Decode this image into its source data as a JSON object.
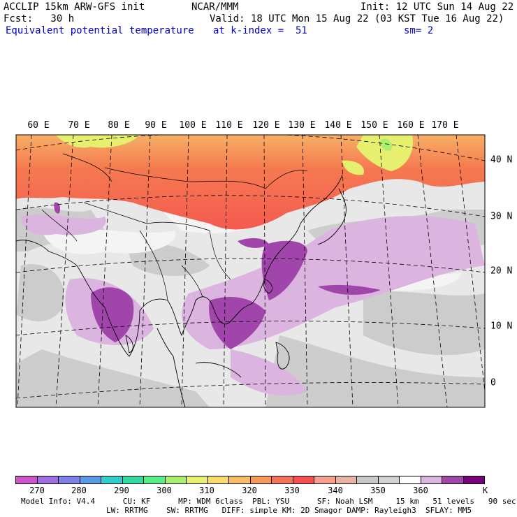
{
  "header": {
    "title_line": "ACCLIP 15km ARW-GFS init",
    "center": "NCAR/MMM",
    "init": "Init: 12 UTC Sun 14 Aug 22",
    "fcst": "Fcst:   30 h",
    "valid": "Valid: 18 UTC Mon 15 Aug 22 (03 KST Tue 16 Aug 22)",
    "field": "Equivalent potential temperature",
    "level": "at k-index =  51",
    "smooth": "sm= 2"
  },
  "map": {
    "lon_labels": [
      "60 E",
      "70 E",
      "80 E",
      "90 E",
      "100 E",
      "110 E",
      "120 E",
      "130 E",
      "140 E",
      "150 E",
      "160 E",
      "170 E"
    ],
    "lat_labels": [
      "40 N",
      "30 N",
      "20 N",
      "10 N",
      "0"
    ],
    "colors": {
      "background": "#e6e6e6",
      "frame": "#000000",
      "coast": "#000000",
      "grid": "#000000"
    }
  },
  "colorbar": {
    "colors": [
      "#cc55cc",
      "#9e6ee0",
      "#7f7fe6",
      "#5a9be6",
      "#33cccc",
      "#33d9a0",
      "#55ee88",
      "#aaf06e",
      "#e6f06e",
      "#fadc6e",
      "#f8bb66",
      "#f59a5a",
      "#f5735a",
      "#f55050",
      "#f5a08c",
      "#e6b4a0",
      "#c8c8c8",
      "#d2d2d2",
      "#ffffff",
      "#dcb4e0",
      "#a046aa",
      "#780078"
    ],
    "ticks": [
      "270",
      "280",
      "290",
      "300",
      "310",
      "320",
      "330",
      "340",
      "350",
      "360"
    ],
    "unit": "K"
  },
  "footer": {
    "line1": "Model Info: V4.4      CU: KF      MP: WDM 6class  PBL: YSU      SF: Noah LSM     15 km   51 levels   90 sec",
    "line2": "LW: RRTMG    SW: RRTMG   DIFF: simple KM: 2D Smagor DAMP: Rayleigh3  SFLAY: MM5"
  }
}
